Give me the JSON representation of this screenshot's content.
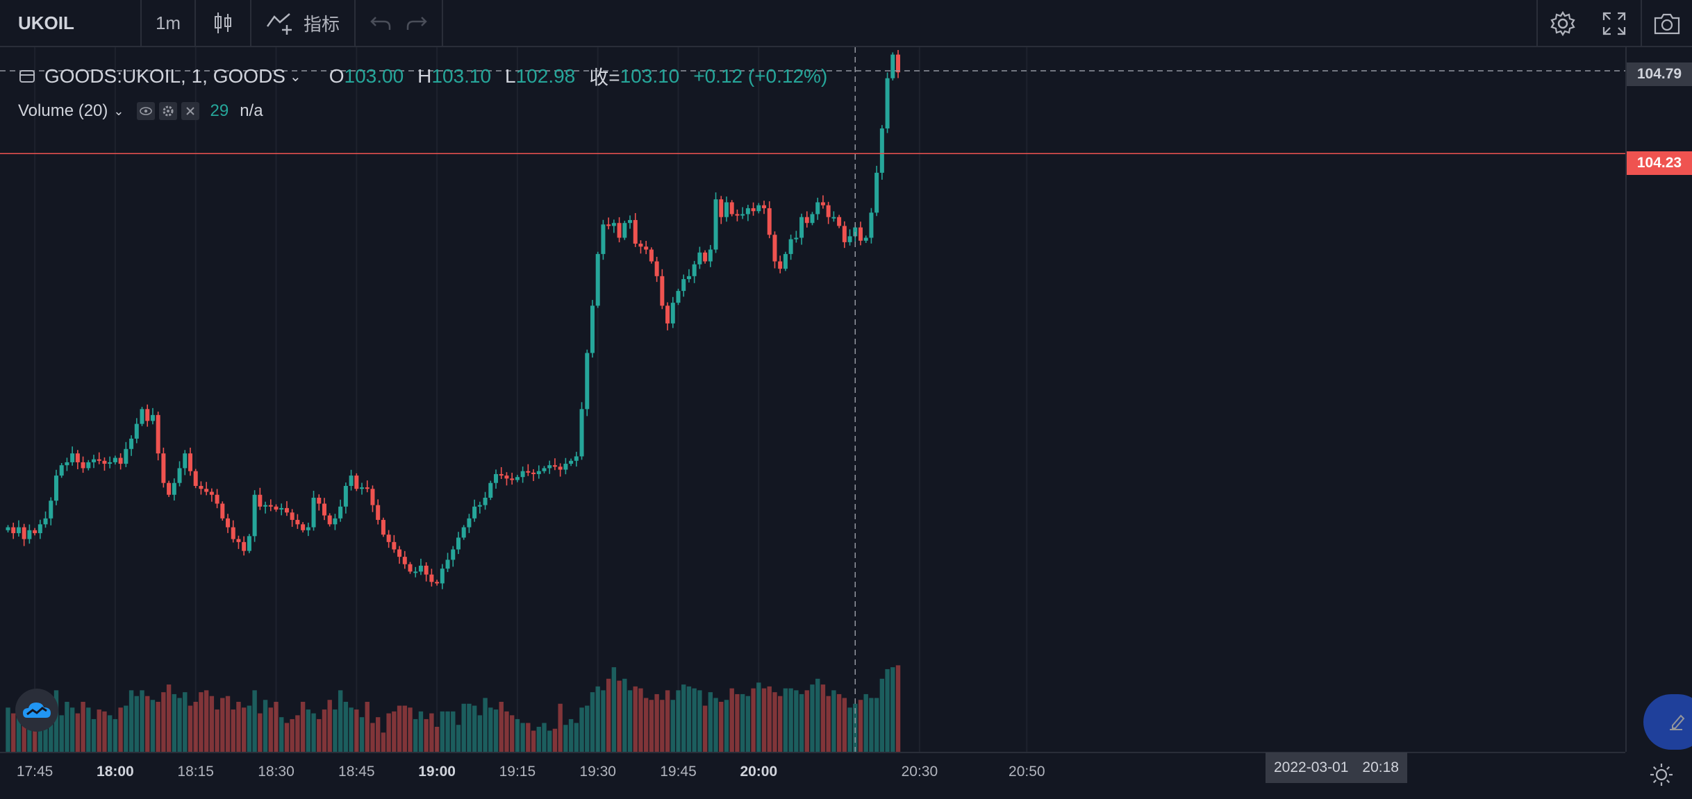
{
  "toolbar": {
    "symbol": "UKOIL",
    "interval": "1m",
    "indicators_label": "指标",
    "icons": [
      "candles-icon",
      "indicators-icon",
      "undo-icon",
      "redo-icon",
      "settings-icon",
      "fullscreen-icon",
      "screenshot-icon"
    ]
  },
  "legend": {
    "symbol": "GOODS:UKOIL, 1, GOODS",
    "open_label": "O",
    "open": "103.00",
    "high_label": "H",
    "high": "103.10",
    "low_label": "L",
    "low": "102.98",
    "close_label": "收=",
    "close": "103.10",
    "change": "+0.12 (+0.12%)"
  },
  "volume_legend": {
    "label": "Volume (20)",
    "value": "29",
    "ma": "n/a"
  },
  "price_axis": {
    "crosshair_price": "104.79",
    "last_price": "104.23"
  },
  "crosshair_time": {
    "date": "2022-03-01",
    "time": "20:18"
  },
  "colors": {
    "up": "#26a69a",
    "down": "#ef5350",
    "background": "#131722",
    "grid": "#2a2e39"
  },
  "chart_data": {
    "type": "candlestick",
    "symbol": "GOODS:UKOIL",
    "interval": "1m",
    "start_time": "17:40",
    "time_ticks": [
      {
        "label": "17:45",
        "minute": 5,
        "bold": false
      },
      {
        "label": "18:00",
        "minute": 20,
        "bold": true
      },
      {
        "label": "18:15",
        "minute": 35,
        "bold": false
      },
      {
        "label": "18:30",
        "minute": 50,
        "bold": false
      },
      {
        "label": "18:45",
        "minute": 65,
        "bold": false
      },
      {
        "label": "19:00",
        "minute": 80,
        "bold": true
      },
      {
        "label": "19:15",
        "minute": 95,
        "bold": false
      },
      {
        "label": "19:30",
        "minute": 110,
        "bold": false
      },
      {
        "label": "19:45",
        "minute": 125,
        "bold": false
      },
      {
        "label": "20:00",
        "minute": 140,
        "bold": true
      },
      {
        "label": "20:30",
        "minute": 170,
        "bold": false
      },
      {
        "label": "20:50",
        "minute": 190,
        "bold": false
      }
    ],
    "y_range": [
      100.18,
      104.95
    ],
    "volume_max": 65,
    "closes": [
      101.7,
      101.66,
      101.7,
      101.62,
      101.68,
      101.66,
      101.72,
      101.76,
      101.88,
      102.05,
      102.12,
      102.14,
      102.2,
      102.14,
      102.1,
      102.14,
      102.16,
      102.15,
      102.13,
      102.14,
      102.17,
      102.13,
      102.23,
      102.3,
      102.4,
      102.5,
      102.42,
      102.46,
      102.2,
      102.0,
      101.92,
      102.0,
      102.1,
      102.2,
      102.08,
      101.98,
      101.96,
      101.94,
      101.92,
      101.86,
      101.76,
      101.7,
      101.62,
      101.6,
      101.54,
      101.64,
      101.92,
      101.84,
      101.85,
      101.84,
      101.82,
      101.83,
      101.8,
      101.75,
      101.72,
      101.68,
      101.7,
      101.9,
      101.86,
      101.78,
      101.72,
      101.76,
      101.84,
      101.98,
      102.05,
      101.96,
      101.97,
      101.96,
      101.85,
      101.75,
      101.65,
      101.6,
      101.55,
      101.5,
      101.45,
      101.4,
      101.4,
      101.44,
      101.38,
      101.33,
      101.32,
      101.42,
      101.48,
      101.55,
      101.63,
      101.7,
      101.76,
      101.84,
      101.85,
      101.9,
      102.0,
      102.06,
      102.05,
      102.03,
      102.02,
      102.04,
      102.08,
      102.07,
      102.06,
      102.08,
      102.1,
      102.12,
      102.11,
      102.09,
      102.13,
      102.15,
      102.18,
      102.5,
      102.88,
      103.2,
      103.55,
      103.75,
      103.74,
      103.76,
      103.66,
      103.76,
      103.78,
      103.62,
      103.6,
      103.58,
      103.5,
      103.4,
      103.2,
      103.08,
      103.22,
      103.3,
      103.38,
      103.4,
      103.48,
      103.56,
      103.5,
      103.58,
      103.92,
      103.8,
      103.9,
      103.82,
      103.81,
      103.82,
      103.86,
      103.84,
      103.88,
      103.86,
      103.68,
      103.5,
      103.45,
      103.55,
      103.65,
      103.66,
      103.8,
      103.76,
      103.82,
      103.9,
      103.88,
      103.8,
      103.8,
      103.74,
      103.63,
      103.67,
      103.73,
      103.64,
      103.66,
      103.83,
      104.1,
      104.4,
      104.74,
      104.9,
      104.78
    ],
    "volumes": [
      23,
      20,
      21,
      20,
      21,
      19,
      25,
      23,
      25,
      32,
      19,
      26,
      23,
      20,
      26,
      23,
      17,
      22,
      21,
      19,
      17,
      23,
      24,
      32,
      29,
      32,
      29,
      27,
      26,
      31,
      35,
      30,
      28,
      31,
      24,
      26,
      31,
      32,
      29,
      22,
      28,
      29,
      22,
      26,
      23,
      24,
      32,
      20,
      27,
      23,
      26,
      18,
      15,
      17,
      19,
      26,
      22,
      20,
      17,
      22,
      27,
      22,
      32,
      26,
      23,
      22,
      18,
      26,
      15,
      18,
      10,
      20,
      21,
      24,
      24,
      23,
      17,
      21,
      17,
      20,
      13,
      21,
      21,
      21,
      14,
      25,
      25,
      24,
      19,
      28,
      23,
      22,
      26,
      21,
      19,
      17,
      15,
      15,
      11,
      13,
      15,
      11,
      12,
      25,
      14,
      17,
      15,
      23,
      24,
      31,
      34,
      32,
      38,
      44,
      37,
      38,
      32,
      34,
      33,
      28,
      27,
      30,
      27,
      32,
      27,
      32,
      35,
      34,
      33,
      32,
      24,
      31,
      28,
      26,
      27,
      33,
      30,
      30,
      29,
      33,
      36,
      33,
      34,
      31,
      29,
      33,
      33,
      32,
      30,
      32,
      35,
      38,
      35,
      29,
      32,
      30,
      28,
      23,
      25,
      27,
      30,
      28,
      28,
      38,
      43,
      44,
      45,
      36,
      20
    ],
    "note": "Approximate per-minute OHLC read from the chart; volumes in relative units. Bars from 17:40 to 20:46."
  }
}
